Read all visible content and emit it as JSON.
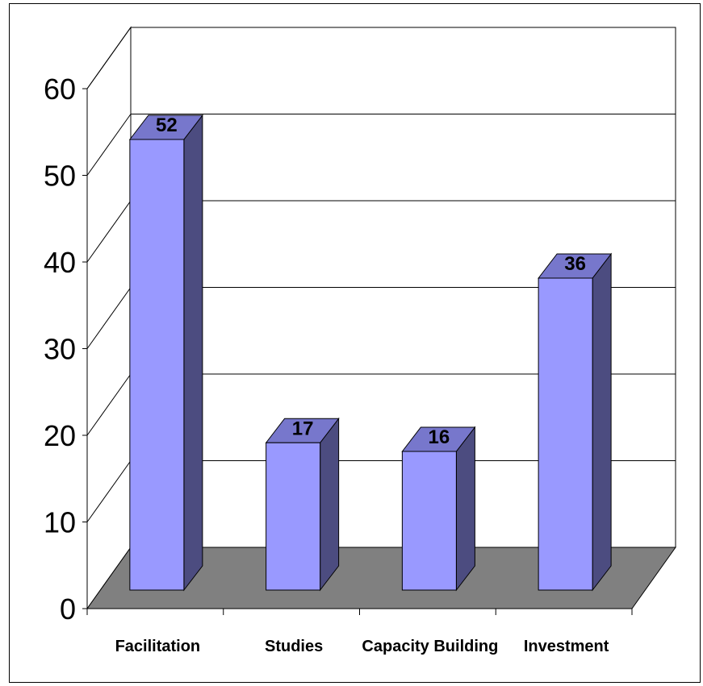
{
  "chart_data": {
    "type": "bar",
    "style": "3d-column",
    "categories": [
      "Facilitation",
      "Studies",
      "Capacity Building",
      "Investment"
    ],
    "values": [
      52,
      17,
      16,
      36
    ],
    "data_labels": [
      "52",
      "17",
      "16",
      "36"
    ],
    "y_ticks": [
      "0",
      "10",
      "20",
      "30",
      "40",
      "50",
      "60"
    ],
    "ylim": [
      0,
      60
    ],
    "grid": true,
    "legend": "none",
    "title": "",
    "xlabel": "",
    "ylabel": "",
    "colors": {
      "bar_front": "#9999ff",
      "bar_top": "#7777cc",
      "bar_side": "#4c4c80",
      "floor": "#808080",
      "gridline": "#000000",
      "background": "#ffffff"
    }
  }
}
